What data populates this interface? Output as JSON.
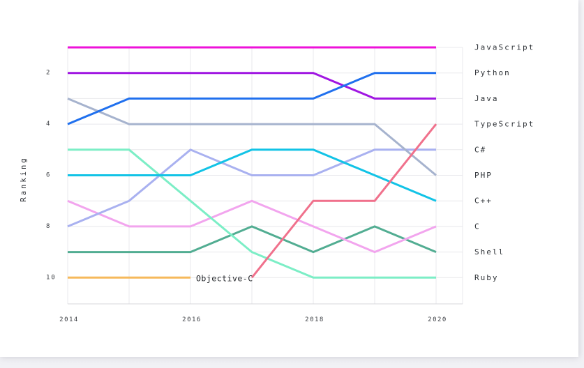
{
  "page": {
    "card_bg": "#ffffff",
    "page_bg": "#f1f1f5",
    "grid_color": "#e8e8ec",
    "axis_color": "#d7d7db",
    "tick_text_color": "#3a3d42",
    "label_text_color": "#2e3237"
  },
  "chart_data": {
    "type": "line",
    "variant": "bump-ranking",
    "title": "",
    "xlabel": "",
    "ylabel": "Ranking",
    "x": [
      "2014",
      "2015",
      "2016",
      "2017",
      "2018",
      "2019",
      "2020"
    ],
    "x_tick_labels": [
      "2014",
      "2016",
      "2018",
      "2020"
    ],
    "y_ticks": [
      "2",
      "4",
      "6",
      "8",
      "10"
    ],
    "y_axis": {
      "min": 1,
      "max": 10,
      "inverted": true,
      "meaning": "rank (1 = top)"
    },
    "grid": true,
    "legend_position": "right-end-labels",
    "series": [
      {
        "name": "JavaScript",
        "color": "#ee12d9",
        "values": [
          1,
          1,
          1,
          1,
          1,
          1,
          1
        ]
      },
      {
        "name": "Python",
        "color": "#2070ee",
        "values": [
          4,
          3,
          3,
          3,
          3,
          2,
          2
        ]
      },
      {
        "name": "Java",
        "color": "#a016e2",
        "values": [
          2,
          2,
          2,
          2,
          2,
          3,
          3
        ]
      },
      {
        "name": "TypeScript",
        "color": "#f0718c",
        "values": [
          null,
          null,
          null,
          10,
          7,
          7,
          4
        ]
      },
      {
        "name": "C#",
        "color": "#a9b1f0",
        "values": [
          8,
          7,
          5,
          6,
          6,
          5,
          5
        ]
      },
      {
        "name": "PHP",
        "color": "#a6b3ce",
        "values": [
          3,
          4,
          4,
          4,
          4,
          4,
          6
        ]
      },
      {
        "name": "C++",
        "color": "#12c3e6",
        "values": [
          6,
          6,
          6,
          5,
          5,
          6,
          7
        ]
      },
      {
        "name": "C",
        "color": "#f2a5ee",
        "values": [
          7,
          8,
          8,
          7,
          8,
          9,
          8
        ]
      },
      {
        "name": "Shell",
        "color": "#52ad92",
        "values": [
          9,
          9,
          9,
          8,
          9,
          8,
          9
        ]
      },
      {
        "name": "Ruby",
        "color": "#7ceec6",
        "values": [
          5,
          5,
          7,
          9,
          10,
          10,
          10
        ]
      },
      {
        "name": "Objective-C",
        "color": "#f6b95b",
        "values": [
          10,
          10,
          10,
          null,
          null,
          null,
          null
        ]
      }
    ],
    "annotations": [
      {
        "text": "Objective-C",
        "x": "2016",
        "rank": 10
      }
    ]
  }
}
